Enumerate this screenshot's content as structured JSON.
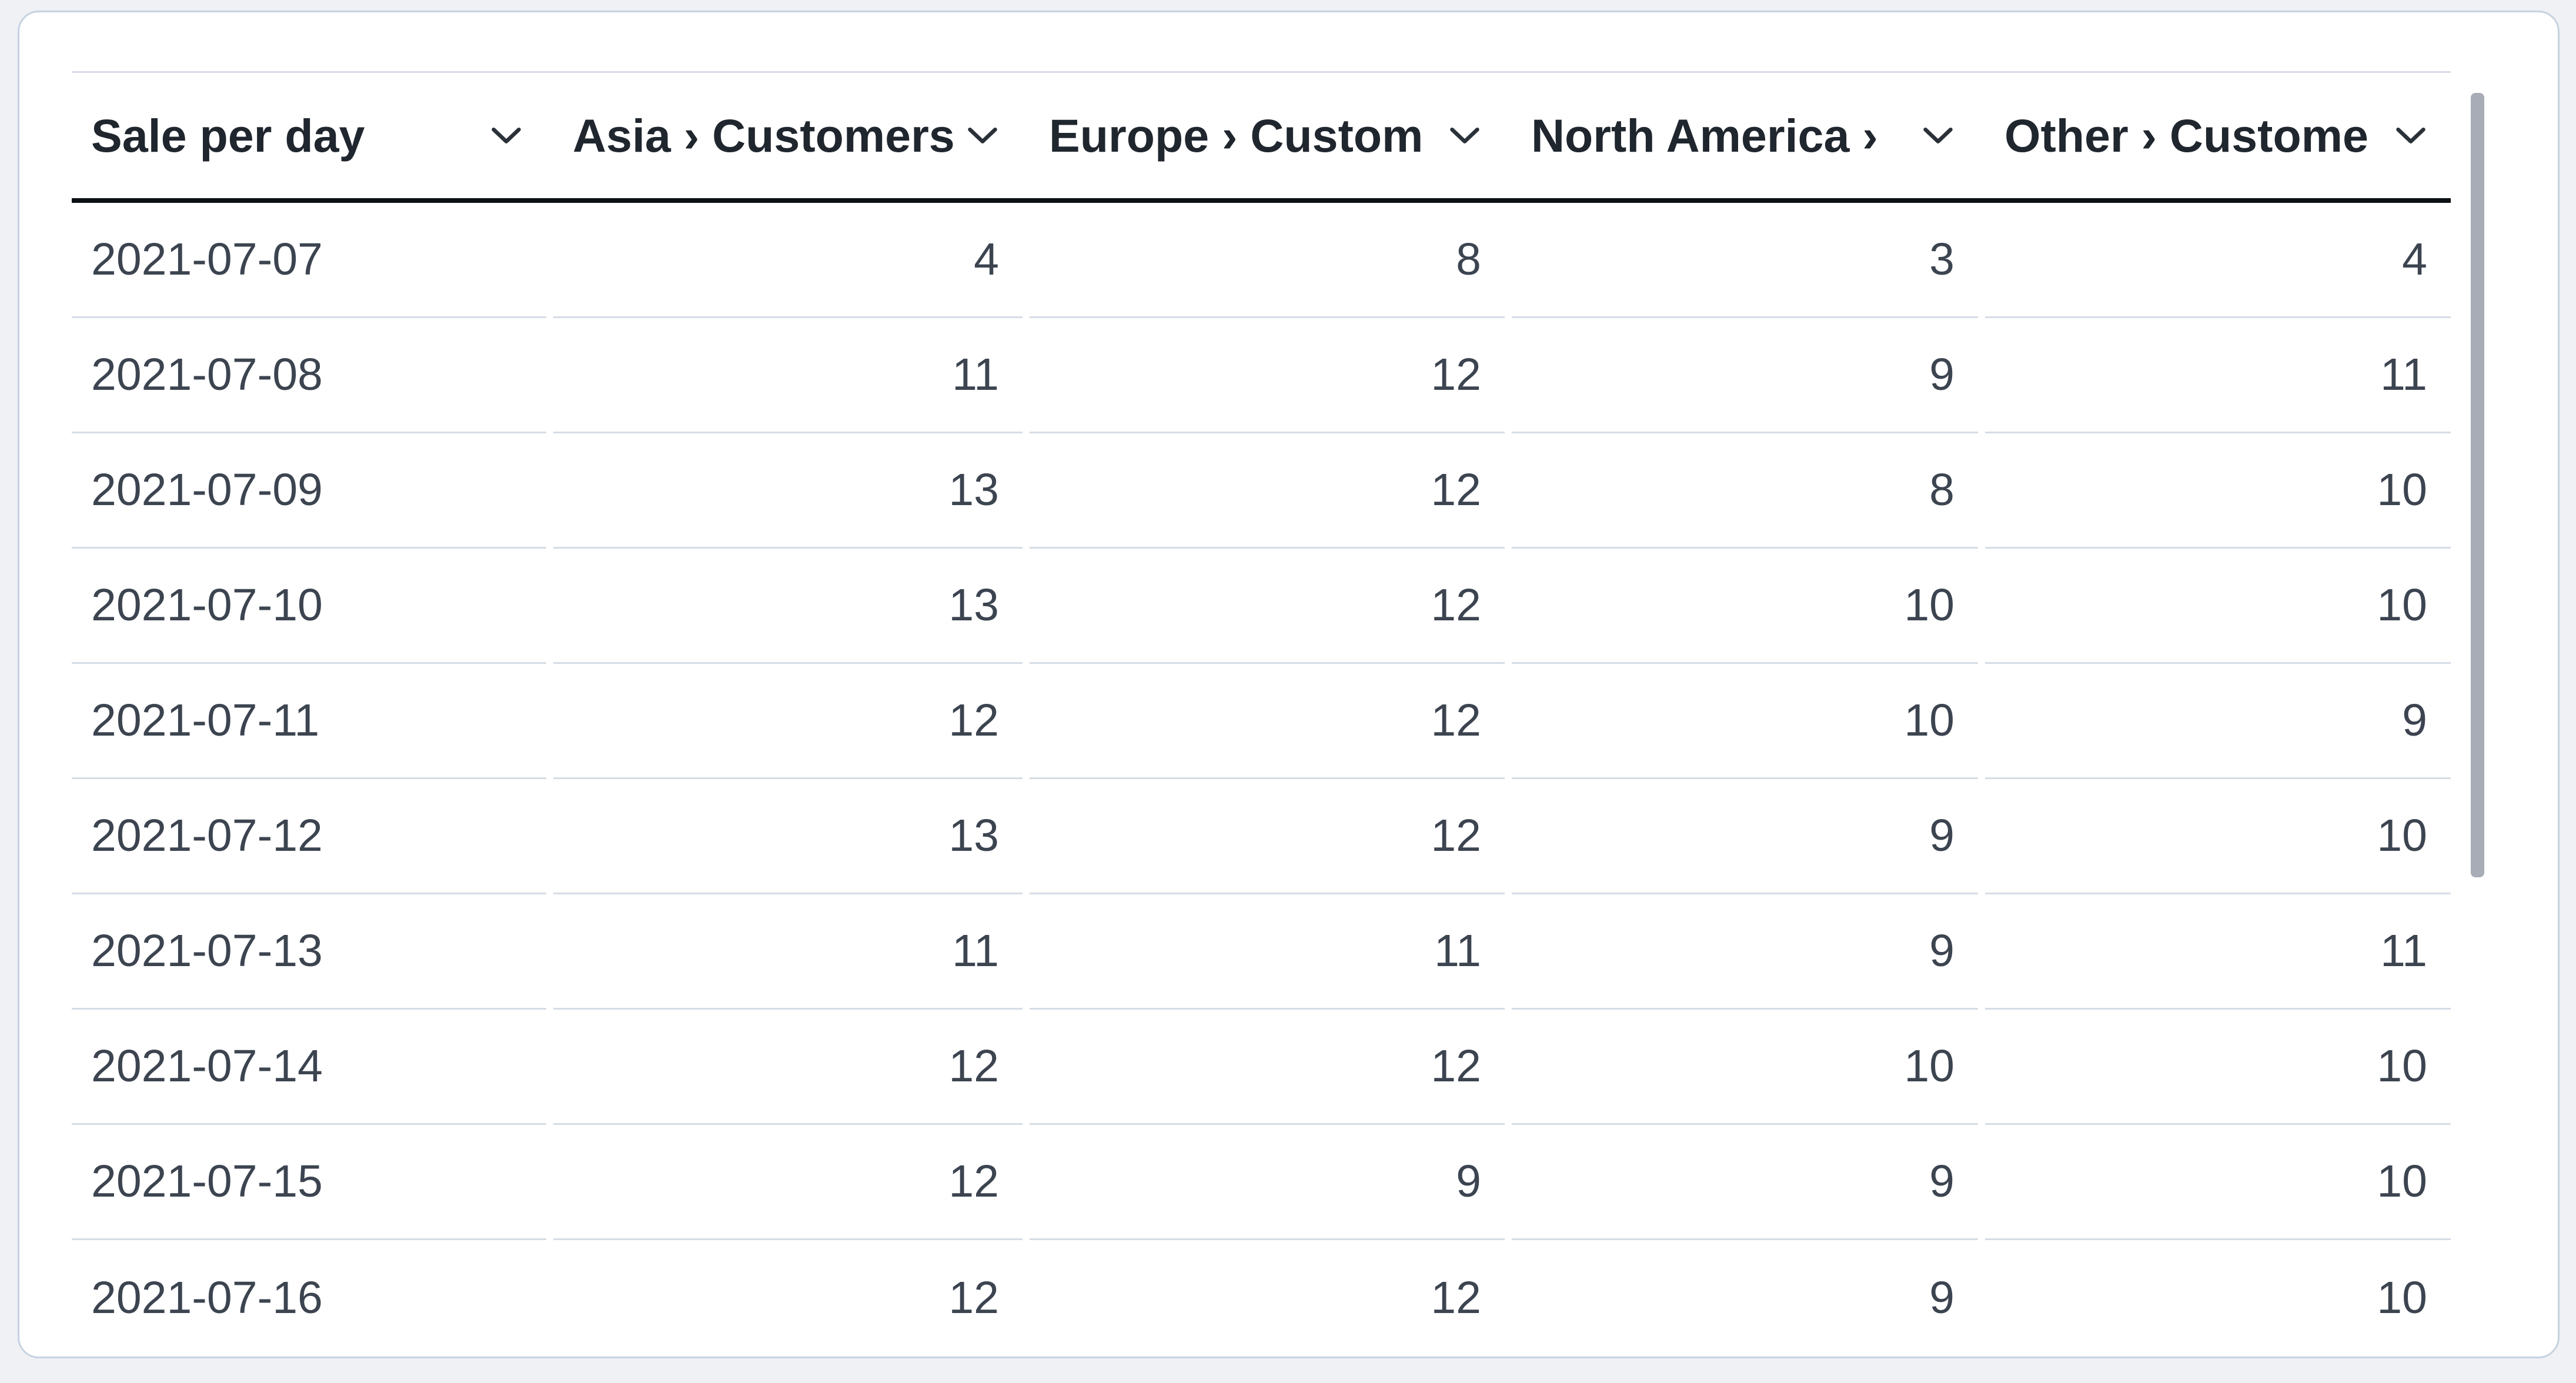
{
  "table": {
    "columns": [
      {
        "id": "sale-per-day",
        "label": "Sale per day"
      },
      {
        "id": "asia",
        "label": "Asia › Customers"
      },
      {
        "id": "europe",
        "label": "Europe › Custom"
      },
      {
        "id": "north-america",
        "label": "North America › "
      },
      {
        "id": "other",
        "label": "Other › Custome"
      }
    ],
    "rows": [
      {
        "date": "2021-07-07",
        "values": [
          "4",
          "8",
          "3",
          "4"
        ]
      },
      {
        "date": "2021-07-08",
        "values": [
          "11",
          "12",
          "9",
          "11"
        ]
      },
      {
        "date": "2021-07-09",
        "values": [
          "13",
          "12",
          "8",
          "10"
        ]
      },
      {
        "date": "2021-07-10",
        "values": [
          "13",
          "12",
          "10",
          "10"
        ]
      },
      {
        "date": "2021-07-11",
        "values": [
          "12",
          "12",
          "10",
          "9"
        ]
      },
      {
        "date": "2021-07-12",
        "values": [
          "13",
          "12",
          "9",
          "10"
        ]
      },
      {
        "date": "2021-07-13",
        "values": [
          "11",
          "11",
          "9",
          "11"
        ]
      },
      {
        "date": "2021-07-14",
        "values": [
          "12",
          "12",
          "10",
          "10"
        ]
      },
      {
        "date": "2021-07-15",
        "values": [
          "12",
          "9",
          "9",
          "10"
        ]
      },
      {
        "date": "2021-07-16",
        "values": [
          "12",
          "12",
          "9",
          "10"
        ]
      }
    ]
  },
  "icons": {
    "header_dropdown": "chevron-down"
  },
  "colors": {
    "page_background": "#eff1f5",
    "card_background": "#ffffff",
    "card_border": "#c7d2e0",
    "header_text": "#20262e",
    "header_underline": "#0c1015",
    "cell_text": "#3c4450",
    "row_separator": "#d6dce6",
    "scrollbar_thumb": "#a7acb6"
  },
  "scrollbar": {
    "orientation": "vertical",
    "position": "top"
  }
}
